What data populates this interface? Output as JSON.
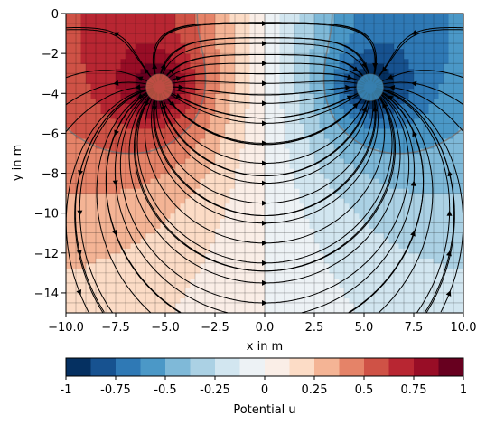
{
  "chart_data": {
    "type": "heatmap",
    "title": "",
    "xlabel": "x in m",
    "ylabel": "y in m",
    "xlim": [
      -10,
      10
    ],
    "ylim": [
      -15,
      0
    ],
    "x_ticks": [
      -10,
      -7.5,
      -5,
      -2.5,
      0,
      2.5,
      5,
      7.5,
      10
    ],
    "x_tick_labels": [
      "−10.0",
      "−7.5",
      "−5.0",
      "−2.5",
      "0.0",
      "2.5",
      "5.0",
      "7.5",
      "10.0"
    ],
    "y_ticks": [
      0,
      -2,
      -4,
      -6,
      -8,
      -10,
      -12,
      -14
    ],
    "y_tick_labels": [
      "0",
      "−2",
      "−4",
      "−6",
      "−8",
      "−10",
      "−12",
      "−14"
    ],
    "mesh_spacing": 0.5,
    "sources": [
      {
        "x": -5.3,
        "y": -3.7,
        "sign": 1
      },
      {
        "x": 5.3,
        "y": -3.7,
        "sign": -1
      }
    ],
    "grid": true,
    "streamlines": true,
    "colorbar": {
      "label": "Potential u",
      "levels": [
        -1,
        -0.875,
        -0.75,
        -0.625,
        -0.5,
        -0.375,
        -0.25,
        -0.125,
        0,
        0.125,
        0.25,
        0.375,
        0.5,
        0.625,
        0.75,
        0.875,
        1
      ],
      "colors": [
        "#053061",
        "#175290",
        "#2f79b5",
        "#4b98c7",
        "#7fb9d8",
        "#abd1e4",
        "#d2e6f0",
        "#edf2f5",
        "#faeee7",
        "#fcdcc6",
        "#f4b495",
        "#e58368",
        "#cf5246",
        "#b82632",
        "#980d26",
        "#67001f"
      ],
      "tick_values": [
        -1,
        -0.75,
        -0.5,
        -0.25,
        0,
        0.25,
        0.5,
        0.75,
        1
      ],
      "tick_labels": [
        "-1",
        "-0.75",
        "-0.5",
        "-0.25",
        "0",
        "0.25",
        "0.5",
        "0.75",
        "1"
      ]
    }
  }
}
